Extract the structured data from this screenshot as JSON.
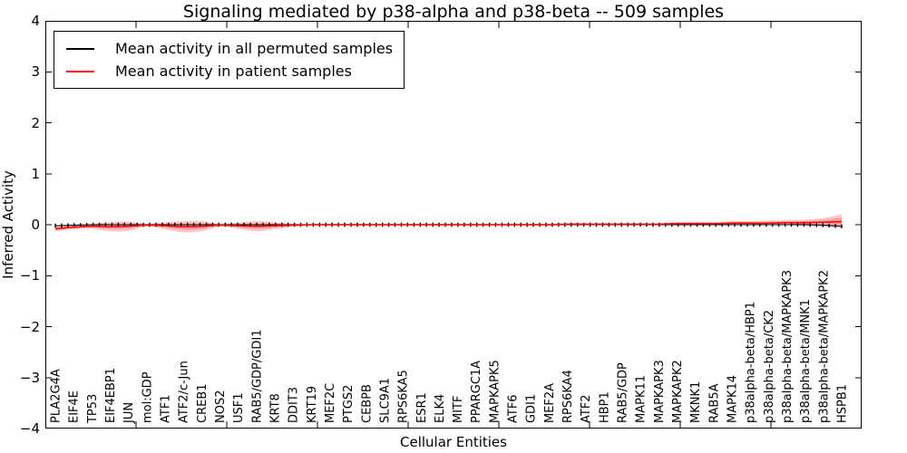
{
  "figure": {
    "title": "Signaling mediated by p38-alpha and p38-beta -- 509 samples",
    "xlabel": "Cellular Entities",
    "ylabel": "Inferred Activity"
  },
  "chart_data": {
    "type": "line",
    "title": "Signaling mediated by p38-alpha and p38-beta -- 509 samples",
    "xlabel": "Cellular Entities",
    "ylabel": "Inferred Activity",
    "ylim": [
      -4,
      4
    ],
    "ytick_labels": [
      "4",
      "3",
      "2",
      "1",
      "0",
      "−1",
      "−2",
      "−3",
      "−4"
    ],
    "grid": false,
    "legend_position": "upper left",
    "categories": [
      "PLA2G4A",
      "EIF4E",
      "TP53",
      "EIF4EBP1",
      "JUN",
      "mol:GDP",
      "ATF1",
      "ATF2/c-Jun",
      "CREB1",
      "NOS2",
      "USF1",
      "RAB5/GDP/GDI1",
      "KRT8",
      "DDIT3",
      "KRT19",
      "MEF2C",
      "PTGS2",
      "CEBPB",
      "SLC9A1",
      "RPS6KA5",
      "ESR1",
      "ELK4",
      "MITF",
      "PPARGC1A",
      "MAPKAPK5",
      "ATF6",
      "GDI1",
      "MEF2A",
      "RPS6KA4",
      "ATF2",
      "HBP1",
      "RAB5/GDP",
      "MAPK11",
      "MAPKAPK3",
      "MAPKAPK2",
      "MKNK1",
      "RAB5A",
      "MAPK14",
      "p38alpha-beta/HBP1",
      "p38alpha-beta/CK2",
      "p38alpha-beta/MAPKAPK3",
      "p38alpha-beta/MNK1",
      "p38alpha-beta/MAPKAPK2",
      "HSPB1"
    ],
    "series": [
      {
        "name": "Mean activity in all permuted samples",
        "color": "#000000",
        "marker": "|",
        "values": [
          -0.02,
          -0.01,
          0,
          0,
          0,
          0,
          0,
          0,
          0,
          0,
          0,
          0,
          0,
          0,
          0,
          0,
          0,
          0,
          0,
          0,
          0,
          0,
          0,
          0,
          0,
          0,
          0,
          0,
          0,
          0,
          0,
          0,
          0,
          0,
          0,
          0,
          0,
          0,
          0,
          0,
          0,
          0,
          -0.01,
          -0.03
        ]
      },
      {
        "name": "Mean activity in patient samples",
        "color": "#ff0000",
        "values": [
          -0.08,
          -0.05,
          -0.03,
          -0.04,
          -0.03,
          -0.01,
          -0.02,
          -0.04,
          -0.03,
          -0.01,
          -0.02,
          -0.03,
          -0.02,
          -0.01,
          0,
          0,
          0,
          0,
          0,
          0,
          0,
          0,
          0,
          0,
          0,
          0,
          0,
          0,
          0.01,
          0.01,
          0.01,
          0.01,
          0.01,
          0.01,
          0.02,
          0.02,
          0.02,
          0.03,
          0.03,
          0.03,
          0.04,
          0.04,
          0.05,
          0.06
        ],
        "band_upper": [
          -0.03,
          -0.01,
          0.02,
          0.05,
          0.06,
          0.02,
          0.05,
          0.07,
          0.07,
          0.02,
          0.04,
          0.07,
          0.05,
          0.02,
          0.02,
          0.02,
          0.02,
          0.02,
          0.02,
          0.02,
          0.02,
          0.02,
          0.02,
          0.02,
          0.02,
          0.02,
          0.02,
          0.02,
          0.03,
          0.03,
          0.03,
          0.03,
          0.03,
          0.03,
          0.05,
          0.05,
          0.05,
          0.07,
          0.07,
          0.08,
          0.09,
          0.1,
          0.13,
          0.21
        ],
        "band_lower": [
          -0.13,
          -0.09,
          -0.08,
          -0.13,
          -0.12,
          -0.04,
          -0.09,
          -0.15,
          -0.13,
          -0.04,
          -0.08,
          -0.13,
          -0.09,
          -0.04,
          -0.02,
          -0.02,
          -0.02,
          -0.02,
          -0.02,
          -0.02,
          -0.02,
          -0.02,
          -0.02,
          -0.02,
          -0.02,
          -0.02,
          -0.02,
          -0.02,
          -0.01,
          -0.01,
          -0.01,
          -0.01,
          -0.01,
          -0.01,
          -0.01,
          -0.01,
          -0.01,
          -0.01,
          -0.01,
          -0.01,
          -0.01,
          -0.02,
          -0.03,
          -0.07
        ],
        "band_color": "#ff0000",
        "band_opacity": 0.22
      }
    ],
    "dense_marker_count": 126
  }
}
